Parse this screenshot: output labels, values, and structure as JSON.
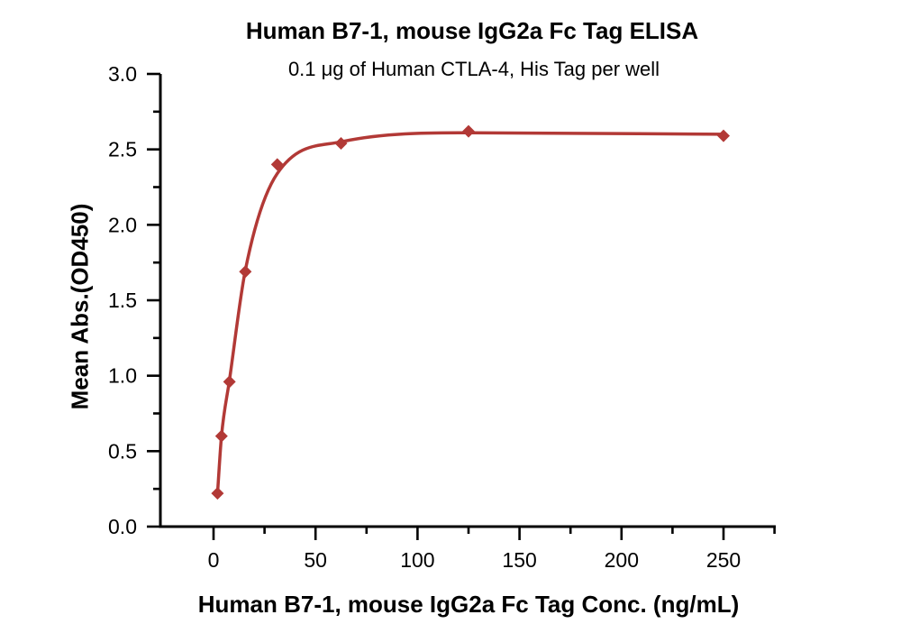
{
  "chart_data": {
    "type": "line",
    "title": "Human B7-1, mouse IgG2a Fc Tag ELISA",
    "subtitle": "0.1 μg of Human CTLA-4, His Tag per well",
    "xlabel": "Human B7-1, mouse IgG2a Fc Tag Conc. (ng/mL)",
    "ylabel": "Mean Abs.(OD450)",
    "grid": false,
    "legend": "none",
    "colors": {
      "series": "#b23936",
      "axis": "#000000",
      "background": "#ffffff"
    },
    "x_axis": {
      "range": [
        0,
        250
      ],
      "tick_values": [
        0,
        50,
        100,
        150,
        200,
        250
      ],
      "tick_labels": [
        "0",
        "50",
        "100",
        "150",
        "200",
        "250"
      ],
      "minor_tick_values": [
        25,
        75,
        125,
        175,
        225,
        275
      ]
    },
    "y_axis": {
      "range": [
        0,
        3
      ],
      "tick_values": [
        0,
        0.5,
        1.0,
        1.5,
        2.0,
        2.5,
        3.0
      ],
      "tick_labels": [
        "0.0",
        "0.5",
        "1.0",
        "1.5",
        "2.0",
        "2.5",
        "3.0"
      ],
      "minor_tick_values": [
        0.25,
        0.75,
        1.25,
        1.75,
        2.25,
        2.75
      ]
    },
    "series": [
      {
        "name": "Human B7-1, mouse IgG2a Fc Tag",
        "marker": "diamond",
        "x": [
          1.95,
          3.9,
          7.8,
          15.6,
          31.25,
          62.5,
          125,
          250
        ],
        "y": [
          0.22,
          0.6,
          0.96,
          1.69,
          2.4,
          2.54,
          2.62,
          2.59
        ]
      }
    ],
    "fit_curve": {
      "x": [
        1.95,
        3.9,
        7.8,
        15.6,
        31.25,
        62.5,
        125,
        250
      ],
      "y": [
        0.22,
        0.6,
        0.97,
        1.7,
        2.34,
        2.55,
        2.61,
        2.6
      ]
    }
  }
}
